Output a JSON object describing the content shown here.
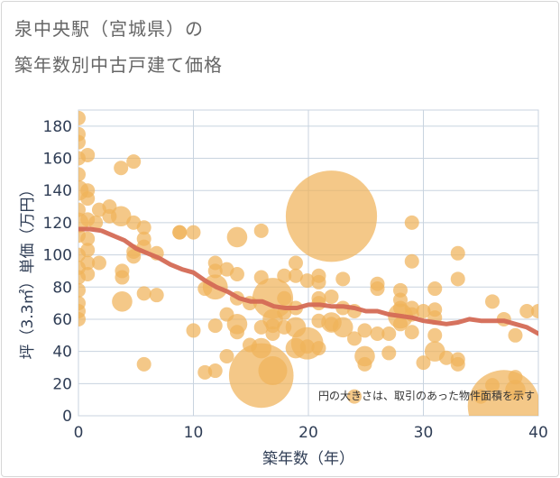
{
  "title": {
    "line1": "泉中央駅（宮城県）の",
    "line2": "築年数別中古戸建て価格"
  },
  "colors": {
    "bubble": "#f0b35a",
    "trend": "#d46a55",
    "grid": "#c8d3df",
    "axis_text": "#2f3d55",
    "background": "#ffffff"
  },
  "chart_data": {
    "type": "scatter",
    "xlabel": "築年数（年）",
    "ylabel": "坪（3.3㎡）単価（万円）",
    "xlim": [
      0,
      40
    ],
    "ylim": [
      0,
      190
    ],
    "xticks": [
      0,
      10,
      20,
      30,
      40
    ],
    "yticks": [
      0,
      20,
      40,
      60,
      80,
      100,
      120,
      140,
      160,
      180
    ],
    "grid": true,
    "annotation": "円の大きさは、取引のあった物件面積を示す",
    "bubbles": [
      {
        "x": 0,
        "y": 185,
        "area": 1
      },
      {
        "x": 0,
        "y": 175,
        "area": 1
      },
      {
        "x": 0,
        "y": 170,
        "area": 1
      },
      {
        "x": 0,
        "y": 160,
        "area": 1
      },
      {
        "x": 0,
        "y": 150,
        "area": 1
      },
      {
        "x": 0,
        "y": 140,
        "area": 2
      },
      {
        "x": 0,
        "y": 128,
        "area": 1
      },
      {
        "x": 0,
        "y": 120,
        "area": 2
      },
      {
        "x": 0,
        "y": 112,
        "area": 1
      },
      {
        "x": 0,
        "y": 100,
        "area": 1
      },
      {
        "x": 0,
        "y": 92,
        "area": 1
      },
      {
        "x": 0,
        "y": 86,
        "area": 1
      },
      {
        "x": 0,
        "y": 78,
        "area": 1
      },
      {
        "x": 0,
        "y": 70,
        "area": 1
      },
      {
        "x": 0,
        "y": 65,
        "area": 1
      },
      {
        "x": 0,
        "y": 60,
        "area": 1
      },
      {
        "x": 0.8,
        "y": 162,
        "area": 1
      },
      {
        "x": 0.8,
        "y": 140,
        "area": 1
      },
      {
        "x": 0.8,
        "y": 135,
        "area": 1
      },
      {
        "x": 0.8,
        "y": 122,
        "area": 1
      },
      {
        "x": 0.8,
        "y": 110,
        "area": 1
      },
      {
        "x": 0.8,
        "y": 103,
        "area": 1
      },
      {
        "x": 0.8,
        "y": 95,
        "area": 1
      },
      {
        "x": 0.8,
        "y": 88,
        "area": 1
      },
      {
        "x": 1.5,
        "y": 120,
        "area": 1
      },
      {
        "x": 1.8,
        "y": 128,
        "area": 1
      },
      {
        "x": 1.8,
        "y": 95,
        "area": 1
      },
      {
        "x": 2.7,
        "y": 124,
        "area": 1
      },
      {
        "x": 2.7,
        "y": 130,
        "area": 1
      },
      {
        "x": 3.7,
        "y": 124,
        "area": 2
      },
      {
        "x": 3.7,
        "y": 154,
        "area": 1
      },
      {
        "x": 3.8,
        "y": 90,
        "area": 1
      },
      {
        "x": 3.8,
        "y": 86,
        "area": 1
      },
      {
        "x": 3.8,
        "y": 71,
        "area": 2
      },
      {
        "x": 4.8,
        "y": 158,
        "area": 1
      },
      {
        "x": 4.8,
        "y": 120,
        "area": 1
      },
      {
        "x": 4.8,
        "y": 102,
        "area": 1
      },
      {
        "x": 4.8,
        "y": 99,
        "area": 1
      },
      {
        "x": 5.7,
        "y": 117,
        "area": 1
      },
      {
        "x": 5.7,
        "y": 110,
        "area": 1
      },
      {
        "x": 5.7,
        "y": 105,
        "area": 1
      },
      {
        "x": 5.7,
        "y": 76,
        "area": 1
      },
      {
        "x": 5.7,
        "y": 32,
        "area": 1
      },
      {
        "x": 6.8,
        "y": 101,
        "area": 1
      },
      {
        "x": 6.8,
        "y": 75,
        "area": 1
      },
      {
        "x": 8.8,
        "y": 114,
        "area": 1
      },
      {
        "x": 8.8,
        "y": 114,
        "area": 1
      },
      {
        "x": 10,
        "y": 114,
        "area": 1
      },
      {
        "x": 10,
        "y": 53,
        "area": 1
      },
      {
        "x": 11,
        "y": 79,
        "area": 1
      },
      {
        "x": 11,
        "y": 27,
        "area": 1
      },
      {
        "x": 11.9,
        "y": 95,
        "area": 1
      },
      {
        "x": 11.9,
        "y": 90,
        "area": 1
      },
      {
        "x": 11.9,
        "y": 80,
        "area": 3
      },
      {
        "x": 11.9,
        "y": 56,
        "area": 1
      },
      {
        "x": 11.9,
        "y": 28,
        "area": 1
      },
      {
        "x": 12.9,
        "y": 91,
        "area": 1
      },
      {
        "x": 12.9,
        "y": 63,
        "area": 1
      },
      {
        "x": 12.9,
        "y": 37,
        "area": 1
      },
      {
        "x": 13.8,
        "y": 111,
        "area": 2
      },
      {
        "x": 13.8,
        "y": 88,
        "area": 1
      },
      {
        "x": 13.8,
        "y": 73,
        "area": 1
      },
      {
        "x": 13.8,
        "y": 57,
        "area": 2
      },
      {
        "x": 13.8,
        "y": 52,
        "area": 1
      },
      {
        "x": 14.9,
        "y": 70,
        "area": 1
      },
      {
        "x": 14.9,
        "y": 44,
        "area": 1
      },
      {
        "x": 15.9,
        "y": 115,
        "area": 1
      },
      {
        "x": 15.9,
        "y": 86,
        "area": 1
      },
      {
        "x": 15.9,
        "y": 55,
        "area": 1
      },
      {
        "x": 15.9,
        "y": 42,
        "area": 2
      },
      {
        "x": 15.9,
        "y": 25,
        "area": 20
      },
      {
        "x": 16.9,
        "y": 73,
        "area": 8
      },
      {
        "x": 16.9,
        "y": 60,
        "area": 2
      },
      {
        "x": 16.9,
        "y": 56,
        "area": 1
      },
      {
        "x": 16.9,
        "y": 51,
        "area": 1
      },
      {
        "x": 16.9,
        "y": 28,
        "area": 4
      },
      {
        "x": 17.9,
        "y": 87,
        "area": 1
      },
      {
        "x": 17.9,
        "y": 73,
        "area": 1
      },
      {
        "x": 17.9,
        "y": 64,
        "area": 1
      },
      {
        "x": 17.9,
        "y": 55,
        "area": 1
      },
      {
        "x": 18.9,
        "y": 95,
        "area": 1
      },
      {
        "x": 18.9,
        "y": 87,
        "area": 1
      },
      {
        "x": 18.9,
        "y": 67,
        "area": 1
      },
      {
        "x": 18.9,
        "y": 55,
        "area": 2
      },
      {
        "x": 18.9,
        "y": 42,
        "area": 2
      },
      {
        "x": 19.9,
        "y": 84,
        "area": 1
      },
      {
        "x": 19.9,
        "y": 45,
        "area": 5
      },
      {
        "x": 19.9,
        "y": 43,
        "area": 1
      },
      {
        "x": 20.9,
        "y": 87,
        "area": 1
      },
      {
        "x": 20.9,
        "y": 83,
        "area": 1
      },
      {
        "x": 20.9,
        "y": 73,
        "area": 1
      },
      {
        "x": 20.9,
        "y": 70,
        "area": 1
      },
      {
        "x": 20.9,
        "y": 59,
        "area": 1
      },
      {
        "x": 20.9,
        "y": 42,
        "area": 1
      },
      {
        "x": 22,
        "y": 124,
        "area": 40
      },
      {
        "x": 22,
        "y": 74,
        "area": 1
      },
      {
        "x": 22,
        "y": 58,
        "area": 2
      },
      {
        "x": 22,
        "y": 57,
        "area": 1
      },
      {
        "x": 23,
        "y": 85,
        "area": 1
      },
      {
        "x": 23,
        "y": 67,
        "area": 1
      },
      {
        "x": 23,
        "y": 55,
        "area": 2
      },
      {
        "x": 24,
        "y": 65,
        "area": 1
      },
      {
        "x": 24,
        "y": 48,
        "area": 1
      },
      {
        "x": 24,
        "y": 12,
        "area": 1
      },
      {
        "x": 24.9,
        "y": 53,
        "area": 1
      },
      {
        "x": 24.9,
        "y": 37,
        "area": 2
      },
      {
        "x": 24.9,
        "y": 32,
        "area": 1
      },
      {
        "x": 26,
        "y": 82,
        "area": 1
      },
      {
        "x": 26,
        "y": 79,
        "area": 1
      },
      {
        "x": 26,
        "y": 51,
        "area": 1
      },
      {
        "x": 27,
        "y": 39,
        "area": 1
      },
      {
        "x": 27,
        "y": 51,
        "area": 1
      },
      {
        "x": 28,
        "y": 78,
        "area": 1
      },
      {
        "x": 28,
        "y": 72,
        "area": 1
      },
      {
        "x": 28,
        "y": 67,
        "area": 1
      },
      {
        "x": 28,
        "y": 62,
        "area": 3
      },
      {
        "x": 28,
        "y": 57,
        "area": 1
      },
      {
        "x": 29,
        "y": 120,
        "area": 1
      },
      {
        "x": 29,
        "y": 96,
        "area": 1
      },
      {
        "x": 29,
        "y": 67,
        "area": 1
      },
      {
        "x": 29,
        "y": 63,
        "area": 1
      },
      {
        "x": 29,
        "y": 52,
        "area": 1
      },
      {
        "x": 30,
        "y": 65,
        "area": 1
      },
      {
        "x": 30,
        "y": 33,
        "area": 1
      },
      {
        "x": 31,
        "y": 79,
        "area": 1
      },
      {
        "x": 31,
        "y": 66,
        "area": 1
      },
      {
        "x": 31,
        "y": 61,
        "area": 1
      },
      {
        "x": 31,
        "y": 50,
        "area": 1
      },
      {
        "x": 31,
        "y": 40,
        "area": 2
      },
      {
        "x": 32,
        "y": 36,
        "area": 1
      },
      {
        "x": 33,
        "y": 101,
        "area": 1
      },
      {
        "x": 33,
        "y": 85,
        "area": 1
      },
      {
        "x": 33,
        "y": 35,
        "area": 1
      },
      {
        "x": 33,
        "y": 32,
        "area": 1
      },
      {
        "x": 35,
        "y": 12,
        "area": 1
      },
      {
        "x": 36,
        "y": 71,
        "area": 1
      },
      {
        "x": 36,
        "y": 19,
        "area": 1
      },
      {
        "x": 37,
        "y": 60,
        "area": 1
      },
      {
        "x": 37,
        "y": 6,
        "area": 25
      },
      {
        "x": 38,
        "y": 50,
        "area": 1
      },
      {
        "x": 38,
        "y": 24,
        "area": 1
      },
      {
        "x": 38,
        "y": 16,
        "area": 2
      },
      {
        "x": 39,
        "y": 65,
        "area": 1
      },
      {
        "x": 40,
        "y": 65,
        "area": 1
      }
    ],
    "trend": {
      "x": [
        0,
        1,
        2,
        3,
        4,
        5,
        6,
        7,
        8,
        9,
        10,
        11,
        12,
        13,
        14,
        15,
        16,
        17,
        18,
        19,
        20,
        21,
        22,
        23,
        24,
        25,
        26,
        27,
        28,
        29,
        30,
        31,
        32,
        33,
        34,
        35,
        36,
        37,
        38,
        39,
        40
      ],
      "y": [
        116,
        116,
        115,
        112,
        109,
        104,
        101,
        98,
        94,
        91,
        89,
        84,
        80,
        77,
        73,
        71,
        71,
        68,
        67,
        67,
        69,
        69,
        68,
        68,
        67,
        65,
        65,
        63,
        62,
        61,
        59,
        58,
        57,
        58,
        60,
        59,
        59,
        59,
        57,
        55,
        51
      ]
    }
  }
}
